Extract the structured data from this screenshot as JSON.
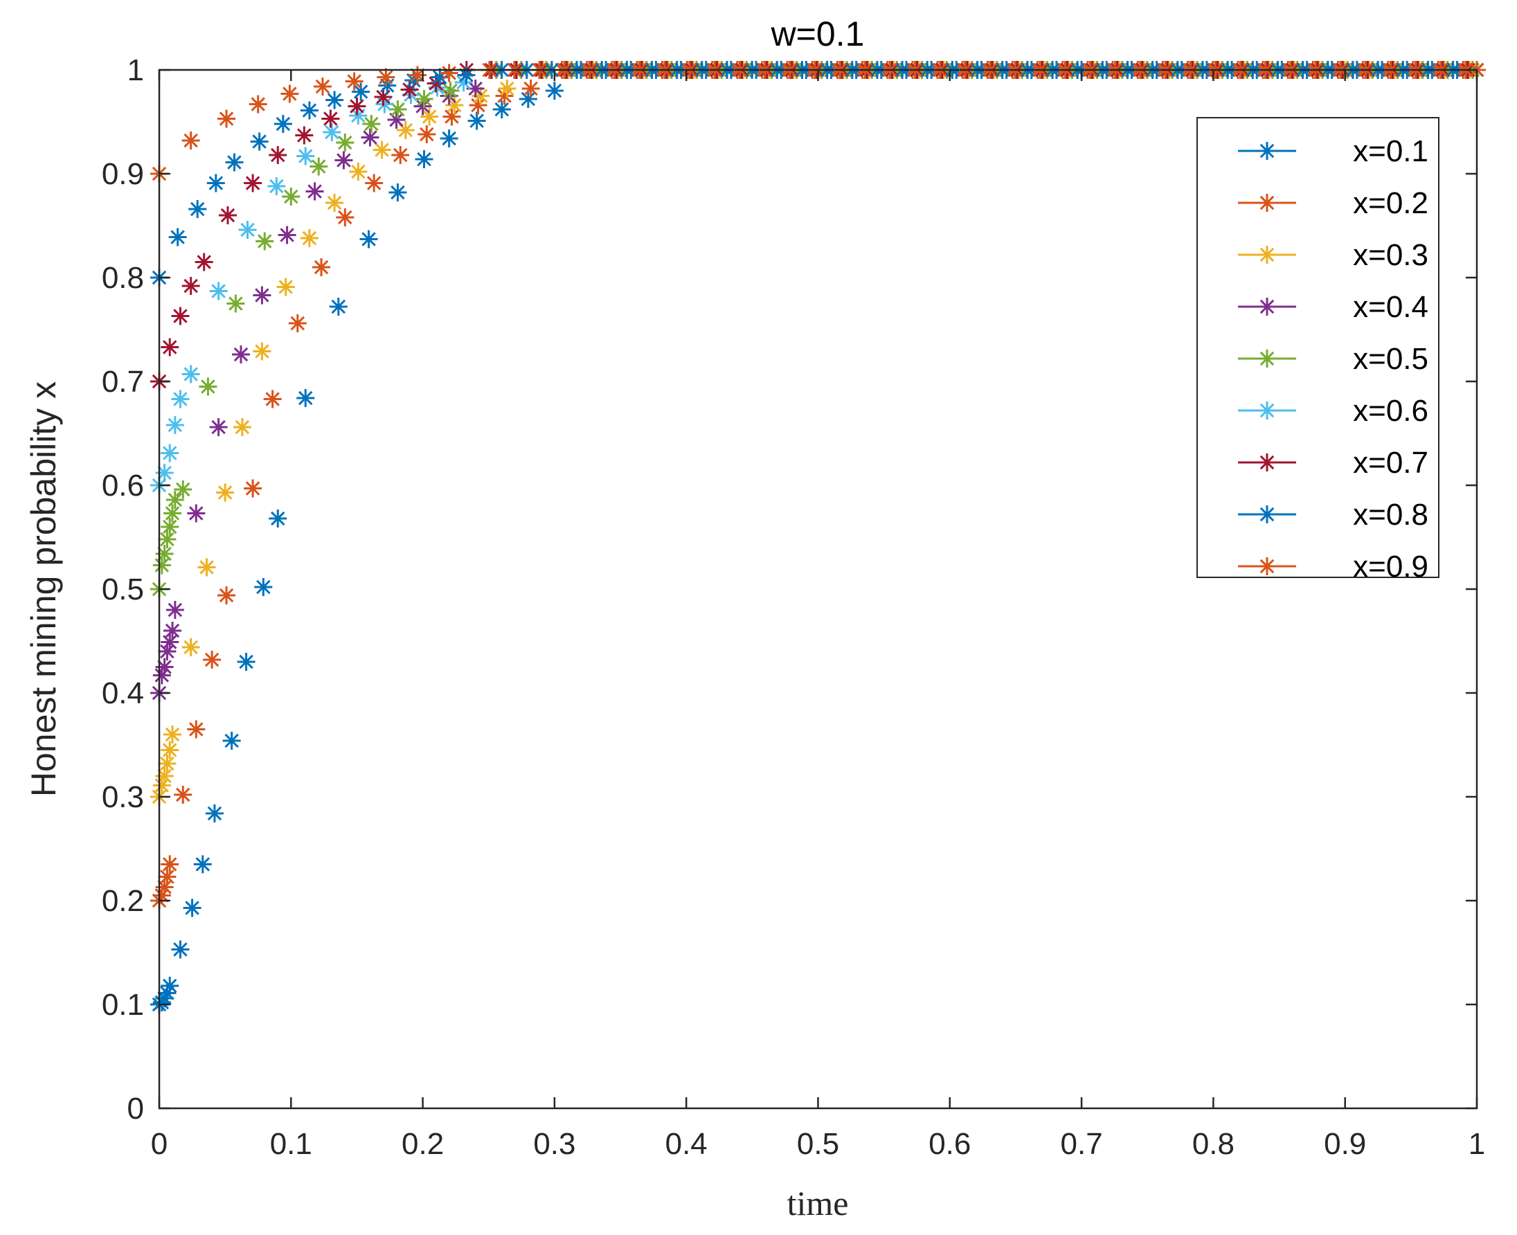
{
  "chart_data": {
    "type": "scatter",
    "title": "w=0.1",
    "xlabel": "time",
    "ylabel": "Honest mining probability x",
    "xlim": [
      0,
      1
    ],
    "ylim": [
      0,
      1
    ],
    "xticks": [
      "0",
      "0.1",
      "0.2",
      "0.3",
      "0.4",
      "0.5",
      "0.6",
      "0.7",
      "0.8",
      "0.9",
      "1"
    ],
    "yticks": [
      "0",
      "0.1",
      "0.2",
      "0.3",
      "0.4",
      "0.5",
      "0.6",
      "0.7",
      "0.8",
      "0.9",
      "1"
    ],
    "grid": false,
    "legend_position": "top-right",
    "marker": "asterisk",
    "series": [
      {
        "name": "x=0.1",
        "color": "#0072BD",
        "x": [
          0.0,
          0.002,
          0.004,
          0.006,
          0.008,
          0.016,
          0.025,
          0.033,
          0.042,
          0.055,
          0.066,
          0.079,
          0.09,
          0.111,
          0.136,
          0.159,
          0.181,
          0.201,
          0.22,
          0.241,
          0.26,
          0.28,
          0.3
        ],
        "y": [
          0.1,
          0.102,
          0.106,
          0.111,
          0.118,
          0.153,
          0.193,
          0.235,
          0.284,
          0.354,
          0.43,
          0.502,
          0.568,
          0.684,
          0.772,
          0.837,
          0.882,
          0.914,
          0.934,
          0.951,
          0.962,
          0.972,
          0.98
        ]
      },
      {
        "name": "x=0.2",
        "color": "#D95319",
        "x": [
          0.0,
          0.002,
          0.004,
          0.006,
          0.008,
          0.018,
          0.028,
          0.04,
          0.051,
          0.071,
          0.086,
          0.105,
          0.123,
          0.141,
          0.163,
          0.183,
          0.203,
          0.222,
          0.242,
          0.262,
          0.282
        ],
        "y": [
          0.2,
          0.205,
          0.213,
          0.223,
          0.235,
          0.302,
          0.365,
          0.432,
          0.494,
          0.597,
          0.683,
          0.756,
          0.81,
          0.858,
          0.891,
          0.918,
          0.938,
          0.955,
          0.966,
          0.975,
          0.982
        ]
      },
      {
        "name": "x=0.3",
        "color": "#EDB120",
        "x": [
          0.0,
          0.002,
          0.004,
          0.006,
          0.008,
          0.01,
          0.024,
          0.036,
          0.05,
          0.063,
          0.078,
          0.096,
          0.114,
          0.133,
          0.151,
          0.169,
          0.187,
          0.205,
          0.224,
          0.244,
          0.264
        ],
        "y": [
          0.3,
          0.311,
          0.32,
          0.332,
          0.345,
          0.36,
          0.444,
          0.521,
          0.593,
          0.656,
          0.729,
          0.791,
          0.838,
          0.872,
          0.902,
          0.923,
          0.942,
          0.955,
          0.966,
          0.975,
          0.982
        ]
      },
      {
        "name": "x=0.4",
        "color": "#7E2F8E",
        "x": [
          0.0,
          0.002,
          0.004,
          0.006,
          0.008,
          0.01,
          0.012,
          0.028,
          0.045,
          0.062,
          0.078,
          0.097,
          0.118,
          0.14,
          0.16,
          0.18,
          0.2,
          0.22,
          0.24
        ],
        "y": [
          0.4,
          0.417,
          0.425,
          0.44,
          0.449,
          0.46,
          0.48,
          0.573,
          0.656,
          0.726,
          0.783,
          0.841,
          0.883,
          0.913,
          0.935,
          0.952,
          0.965,
          0.975,
          0.982
        ]
      },
      {
        "name": "x=0.5",
        "color": "#77AC30",
        "x": [
          0.0,
          0.002,
          0.004,
          0.006,
          0.008,
          0.01,
          0.012,
          0.018,
          0.037,
          0.058,
          0.08,
          0.1,
          0.121,
          0.141,
          0.161,
          0.181,
          0.201,
          0.221
        ],
        "y": [
          0.5,
          0.523,
          0.534,
          0.548,
          0.56,
          0.573,
          0.586,
          0.596,
          0.695,
          0.775,
          0.835,
          0.878,
          0.907,
          0.93,
          0.948,
          0.962,
          0.972,
          0.98
        ]
      },
      {
        "name": "x=0.6",
        "color": "#4DBEEE",
        "x": [
          0.0,
          0.004,
          0.008,
          0.012,
          0.016,
          0.024,
          0.045,
          0.067,
          0.089,
          0.111,
          0.131,
          0.151,
          0.171,
          0.191,
          0.211,
          0.231
        ],
        "y": [
          0.6,
          0.612,
          0.631,
          0.658,
          0.683,
          0.707,
          0.787,
          0.846,
          0.888,
          0.917,
          0.94,
          0.956,
          0.967,
          0.976,
          0.983,
          0.988
        ]
      },
      {
        "name": "x=0.7",
        "color": "#A2142F",
        "x": [
          0.0,
          0.008,
          0.016,
          0.024,
          0.034,
          0.052,
          0.071,
          0.09,
          0.11,
          0.13,
          0.15,
          0.17,
          0.19,
          0.21
        ],
        "y": [
          0.7,
          0.733,
          0.763,
          0.792,
          0.815,
          0.86,
          0.891,
          0.918,
          0.937,
          0.953,
          0.965,
          0.974,
          0.981,
          0.987
        ]
      },
      {
        "name": "x=0.8",
        "color": "#0072BD",
        "x": [
          0.0,
          0.014,
          0.029,
          0.043,
          0.057,
          0.076,
          0.094,
          0.114,
          0.133,
          0.153,
          0.173,
          0.193,
          0.213,
          0.233
        ],
        "y": [
          0.8,
          0.839,
          0.866,
          0.891,
          0.911,
          0.931,
          0.948,
          0.961,
          0.971,
          0.979,
          0.985,
          0.99,
          0.993,
          0.995
        ]
      },
      {
        "name": "x=0.9",
        "color": "#D95319",
        "x": [
          0.0,
          0.024,
          0.051,
          0.075,
          0.099,
          0.124,
          0.148,
          0.172,
          0.196,
          0.22
        ],
        "y": [
          0.9,
          0.932,
          0.953,
          0.967,
          0.977,
          0.984,
          0.989,
          0.993,
          0.995,
          0.997
        ]
      }
    ]
  }
}
